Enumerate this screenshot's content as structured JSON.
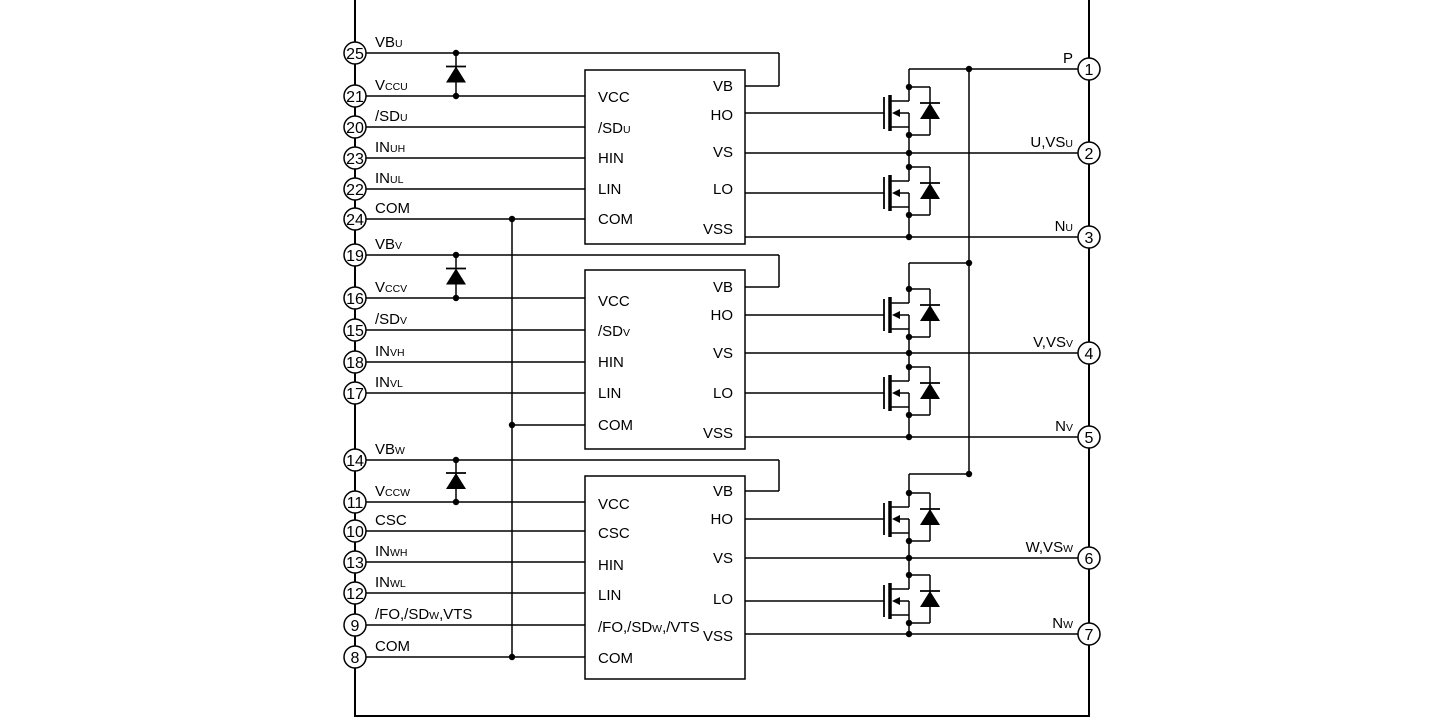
{
  "colors": {
    "line": "#000000",
    "background": "#ffffff"
  },
  "blocks": [
    {
      "id": "u",
      "left_pins": [
        {
          "num": "25",
          "label": "VB",
          "sub": "U"
        },
        {
          "num": "21",
          "label": "V",
          "sub": "CCU"
        },
        {
          "num": "20",
          "label": "/SD",
          "sub": "U"
        },
        {
          "num": "23",
          "label": "IN",
          "sub": "UH"
        },
        {
          "num": "22",
          "label": "IN",
          "sub": "UL"
        },
        {
          "num": "24",
          "label": "COM",
          "sub": ""
        }
      ],
      "ic_left": [
        {
          "label": "VCC",
          "sub": ""
        },
        {
          "label": "/SD",
          "sub": "U"
        },
        {
          "label": "HIN",
          "sub": ""
        },
        {
          "label": "LIN",
          "sub": ""
        },
        {
          "label": "COM",
          "sub": ""
        }
      ],
      "ic_right": [
        "VB",
        "HO",
        "VS",
        "LO",
        "VSS"
      ],
      "right_pins": [
        {
          "num": "1",
          "label": "P",
          "sub": ""
        },
        {
          "num": "2",
          "label": "U,VS",
          "sub": "U"
        },
        {
          "num": "3",
          "label": "N",
          "sub": "U"
        }
      ]
    },
    {
      "id": "v",
      "left_pins": [
        {
          "num": "19",
          "label": "VB",
          "sub": "V"
        },
        {
          "num": "16",
          "label": "V",
          "sub": "CCV"
        },
        {
          "num": "15",
          "label": "/SD",
          "sub": "V"
        },
        {
          "num": "18",
          "label": "IN",
          "sub": "VH"
        },
        {
          "num": "17",
          "label": "IN",
          "sub": "VL"
        }
      ],
      "ic_left": [
        {
          "label": "VCC",
          "sub": ""
        },
        {
          "label": "/SD",
          "sub": "V"
        },
        {
          "label": "HIN",
          "sub": ""
        },
        {
          "label": "LIN",
          "sub": ""
        },
        {
          "label": "COM",
          "sub": ""
        }
      ],
      "ic_right": [
        "VB",
        "HO",
        "VS",
        "LO",
        "VSS"
      ],
      "right_pins": [
        {
          "num": "4",
          "label": "V,VS",
          "sub": "V"
        },
        {
          "num": "5",
          "label": "N",
          "sub": "V"
        }
      ]
    },
    {
      "id": "w",
      "left_pins": [
        {
          "num": "14",
          "label": "VB",
          "sub": "W"
        },
        {
          "num": "11",
          "label": "V",
          "sub": "CCW"
        },
        {
          "num": "10",
          "label": "CSC",
          "sub": ""
        },
        {
          "num": "13",
          "label": "IN",
          "sub": "WH"
        },
        {
          "num": "12",
          "label": "IN",
          "sub": "WL"
        },
        {
          "num": "9",
          "label": "/FO,/SD",
          "sub": "W",
          "tail": ",VTS"
        },
        {
          "num": "8",
          "label": "COM",
          "sub": ""
        }
      ],
      "ic_left": [
        {
          "label": "VCC",
          "sub": ""
        },
        {
          "label": "CSC",
          "sub": ""
        },
        {
          "label": "HIN",
          "sub": ""
        },
        {
          "label": "LIN",
          "sub": ""
        },
        {
          "label": "/FO,/SD",
          "sub": "W",
          "tail": ",/VTS"
        },
        {
          "label": "COM",
          "sub": ""
        }
      ],
      "ic_right": [
        "VB",
        "HO",
        "VS",
        "LO",
        "VSS"
      ],
      "right_pins": [
        {
          "num": "6",
          "label": "W,VS",
          "sub": "W"
        },
        {
          "num": "7",
          "label": "N",
          "sub": "W"
        }
      ]
    }
  ]
}
